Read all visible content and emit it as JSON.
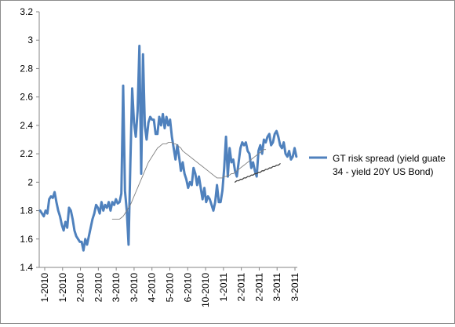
{
  "chart_data": {
    "type": "line",
    "ylim": [
      1.4,
      3.2
    ],
    "yticks": [
      "1.4",
      "1.6",
      "1.8",
      "2",
      "2.2",
      "2.4",
      "2.6",
      "2.8",
      "3",
      "3.2"
    ],
    "xtick_labels": [
      "1-2010",
      "1-2010",
      "2-2010",
      "2-2010",
      "3-2010",
      "3-2010",
      "4-2010",
      "5-2010",
      "6-2010",
      "10-2010",
      "1-2011",
      "2-2011",
      "2-2011",
      "3-2011",
      "3-2011"
    ],
    "grid": false,
    "legend_position": "right",
    "series": [
      {
        "name": "GT risk spread (yield guate 34 - yield 20Y US Bond)",
        "color": "#4f81bd",
        "values": [
          1.8,
          1.78,
          1.76,
          1.8,
          1.78,
          1.88,
          1.9,
          1.89,
          1.93,
          1.86,
          1.8,
          1.76,
          1.7,
          1.66,
          1.72,
          1.68,
          1.82,
          1.8,
          1.74,
          1.66,
          1.62,
          1.6,
          1.58,
          1.58,
          1.52,
          1.6,
          1.56,
          1.62,
          1.68,
          1.74,
          1.78,
          1.84,
          1.82,
          1.78,
          1.86,
          1.8,
          1.84,
          1.82,
          1.86,
          1.8,
          1.86,
          1.84,
          1.88,
          1.85,
          1.86,
          1.92,
          2.68,
          1.94,
          1.8,
          1.56,
          2.14,
          2.66,
          2.42,
          2.32,
          2.5,
          2.96,
          2.06,
          2.9,
          2.4,
          2.3,
          2.42,
          2.46,
          2.44,
          2.44,
          2.34,
          2.34,
          2.46,
          2.4,
          2.48,
          2.38,
          2.46,
          2.4,
          2.44,
          2.32,
          2.24,
          2.16,
          2.26,
          2.18,
          2.08,
          2.14,
          2.06,
          2.02,
          1.96,
          2.0,
          1.98,
          2.1,
          2.06,
          1.98,
          2.04,
          1.96,
          1.88,
          1.96,
          1.86,
          1.9,
          1.88,
          1.84,
          1.8,
          1.86,
          1.98,
          1.86,
          1.86,
          1.94,
          2.1,
          2.32,
          2.04,
          2.24,
          2.14,
          2.16,
          2.08,
          2.04,
          2.14,
          2.24,
          2.28,
          2.26,
          2.28,
          2.22,
          2.2,
          2.1,
          2.14,
          2.08,
          2.04,
          2.22,
          2.26,
          2.2,
          2.3,
          2.28,
          2.32,
          2.34,
          2.26,
          2.28,
          2.34,
          2.36,
          2.32,
          2.26,
          2.24,
          2.28,
          2.2,
          2.18,
          2.22,
          2.16,
          2.18,
          2.24,
          2.18
        ]
      },
      {
        "name": "",
        "color": "#7f7f7f",
        "values": [
          null,
          null,
          null,
          null,
          null,
          null,
          null,
          null,
          null,
          null,
          null,
          null,
          null,
          null,
          null,
          null,
          null,
          null,
          null,
          null,
          null,
          null,
          null,
          null,
          null,
          null,
          null,
          null,
          null,
          null,
          null,
          null,
          null,
          null,
          null,
          null,
          null,
          null,
          null,
          null,
          1.74,
          1.74,
          1.74,
          1.74,
          1.74,
          1.75,
          1.76,
          1.78,
          1.8,
          1.82,
          1.84,
          1.87,
          1.9,
          1.93,
          1.96,
          1.99,
          2.02,
          2.05,
          2.08,
          2.11,
          2.14,
          2.16,
          2.18,
          2.2,
          2.22,
          2.24,
          2.25,
          2.26,
          2.27,
          2.27,
          2.27,
          2.28,
          2.28,
          2.28,
          2.27,
          2.27,
          2.26,
          2.25,
          2.24,
          2.22,
          2.21,
          2.2,
          2.19,
          2.18,
          2.17,
          2.16,
          2.15,
          2.14,
          2.13,
          2.12,
          2.11,
          2.1,
          2.09,
          2.08,
          2.07,
          2.06,
          2.05,
          2.04,
          2.03,
          2.03,
          2.03,
          2.03,
          2.04,
          2.04,
          2.05,
          2.05,
          2.06,
          2.06,
          2.07,
          2.08,
          2.09,
          2.1,
          2.11,
          2.12,
          2.13,
          2.14,
          2.15,
          2.16,
          2.17,
          2.18,
          2.19,
          2.2,
          2.21,
          2.22,
          2.23,
          2.23,
          null,
          null,
          null,
          null,
          null,
          null,
          null,
          null,
          null,
          null,
          null,
          null,
          null,
          null,
          null
        ]
      },
      {
        "name": "",
        "color": "#404040",
        "values": [
          null,
          null,
          null,
          null,
          null,
          null,
          null,
          null,
          null,
          null,
          null,
          null,
          null,
          null,
          null,
          null,
          null,
          null,
          null,
          null,
          null,
          null,
          null,
          null,
          null,
          null,
          null,
          null,
          null,
          null,
          null,
          null,
          null,
          null,
          null,
          null,
          null,
          null,
          null,
          null,
          null,
          null,
          null,
          null,
          null,
          null,
          null,
          null,
          null,
          null,
          null,
          null,
          null,
          null,
          null,
          null,
          null,
          null,
          null,
          null,
          null,
          null,
          null,
          null,
          null,
          null,
          null,
          null,
          null,
          null,
          null,
          null,
          null,
          null,
          null,
          null,
          null,
          null,
          null,
          null,
          null,
          null,
          null,
          null,
          null,
          null,
          null,
          null,
          null,
          null,
          null,
          null,
          null,
          null,
          null,
          null,
          null,
          null,
          null,
          null,
          null,
          null,
          null,
          null,
          null,
          null,
          null,
          null,
          2.0,
          2.01,
          2.01,
          2.02,
          2.02,
          2.03,
          2.03,
          2.04,
          2.04,
          2.05,
          2.05,
          2.06,
          2.06,
          2.07,
          2.07,
          2.08,
          2.08,
          2.09,
          2.09,
          2.1,
          2.1,
          2.11,
          2.11,
          2.12,
          2.12,
          2.13,
          null
        ]
      }
    ]
  }
}
